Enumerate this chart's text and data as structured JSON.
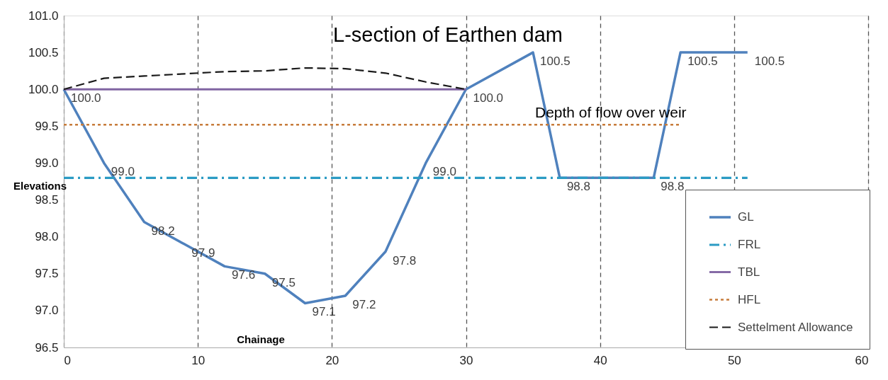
{
  "chart_data": {
    "type": "line",
    "title": "L-section of Earthen dam",
    "xlabel": "Chainage",
    "ylabel": "Elevations",
    "xlim": [
      0,
      60
    ],
    "xticks": [
      0,
      10,
      20,
      30,
      40,
      50,
      60
    ],
    "ylim": [
      96.5,
      101.0
    ],
    "yticks": [
      96.5,
      {
        "value": 97,
        "label": "97.0"
      },
      97.5,
      {
        "value": 98,
        "label": "98.0"
      },
      98.5,
      {
        "value": 99,
        "label": "99.0"
      },
      99.5,
      {
        "value": 100,
        "label": "100.0"
      },
      100.5,
      {
        "value": 101,
        "label": "101.0"
      }
    ],
    "grid": "x",
    "legend": "bottom right",
    "annotations": [
      "Depth of flow over weir"
    ],
    "series": [
      {
        "name": "GL",
        "color": "#4f81bd",
        "line_style": "solid",
        "x": [
          0,
          3,
          6,
          9,
          12,
          15,
          18,
          21,
          24,
          27,
          30,
          35,
          37,
          44,
          46,
          51
        ],
        "values": [
          100.0,
          99.0,
          98.2,
          97.9,
          97.6,
          97.5,
          97.1,
          97.2,
          97.8,
          99.0,
          100.0,
          100.5,
          98.8,
          98.8,
          100.5,
          100.5
        ],
        "value_labels": [
          "100.0",
          "99.0",
          "98.2",
          "97.9",
          "97.6",
          "97.5",
          "97.1",
          "97.2",
          "97.8",
          "99.0",
          "100.0",
          "100.5",
          "98.8",
          "98.8",
          "100.5",
          "100.5"
        ]
      },
      {
        "name": "FRL",
        "color": "#2b9bc4",
        "line_style": "dashdot",
        "x": [
          0,
          51
        ],
        "values": [
          98.8,
          98.8
        ]
      },
      {
        "name": "TBL",
        "color": "#8064a2",
        "line_style": "solid",
        "x": [
          0,
          30
        ],
        "values": [
          100.0,
          100.0
        ]
      },
      {
        "name": "HFL",
        "color": "#c77c3b",
        "line_style": "dotted",
        "x": [
          0,
          46
        ],
        "values": [
          99.52,
          99.52
        ]
      },
      {
        "name": "Settelment Allowance",
        "color": "#1a1a1a",
        "line_style": "dashed",
        "x": [
          0,
          3,
          6,
          9,
          12,
          15,
          18,
          21,
          24,
          27,
          30
        ],
        "values": [
          100.0,
          100.15,
          100.18,
          100.21,
          100.24,
          100.25,
          100.29,
          100.28,
          100.22,
          100.1,
          100.0
        ]
      }
    ]
  }
}
